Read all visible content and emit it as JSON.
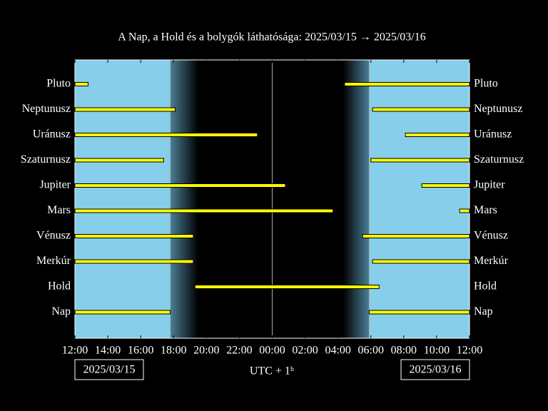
{
  "chart_data": {
    "type": "range",
    "title": "A Nap, a Hold és a bolygók láthatósága: 2025/03/15 → 2025/03/16",
    "xlabel": "UTC + 1ʰ",
    "date_labels": [
      "2025/03/15",
      "2025/03/16"
    ],
    "categories": [
      "Pluto",
      "Neptunusz",
      "Uránusz",
      "Szaturnusz",
      "Jupiter",
      "Mars",
      "Vénusz",
      "Merkúr",
      "Hold",
      "Nap"
    ],
    "intervals": [
      [
        [
          12,
          12.8
        ],
        [
          28.4,
          36
        ]
      ],
      [
        [
          12,
          18.1
        ],
        [
          30.1,
          36
        ]
      ],
      [
        [
          12,
          23.1
        ],
        [
          32.1,
          36
        ]
      ],
      [
        [
          12,
          17.4
        ],
        [
          30.0,
          36
        ]
      ],
      [
        [
          12,
          24.8
        ],
        [
          33.1,
          36
        ]
      ],
      [
        [
          12,
          27.7
        ],
        [
          35.4,
          36
        ]
      ],
      [
        [
          12,
          19.2
        ],
        [
          29.5,
          36
        ]
      ],
      [
        [
          12,
          19.2
        ],
        [
          30.1,
          36
        ]
      ],
      [
        [
          19.3,
          30.5
        ]
      ],
      [
        [
          12,
          17.8
        ],
        [
          29.9,
          36
        ]
      ]
    ],
    "sunset": 17.8,
    "night_start": 19.5,
    "night_end": 28.3,
    "sunrise": 29.9,
    "date_change": 24,
    "bar_color": "#ffff00",
    "day_color": "#87ceeb",
    "xlim": [
      12,
      36
    ],
    "xticks": [
      {
        "value": 12,
        "label": "12:00"
      },
      {
        "value": 14,
        "label": "14:00"
      },
      {
        "value": 16,
        "label": "16:00"
      },
      {
        "value": 18,
        "label": "18:00"
      },
      {
        "value": 20,
        "label": "20:00"
      },
      {
        "value": 22,
        "label": "22:00"
      },
      {
        "value": 24,
        "label": "00:00"
      },
      {
        "value": 26,
        "label": "02:00"
      },
      {
        "value": 28,
        "label": "04:00"
      },
      {
        "value": 30,
        "label": "06:00"
      },
      {
        "value": 32,
        "label": "08:00"
      },
      {
        "value": 34,
        "label": "10:00"
      },
      {
        "value": 36,
        "label": "12:00"
      }
    ]
  }
}
